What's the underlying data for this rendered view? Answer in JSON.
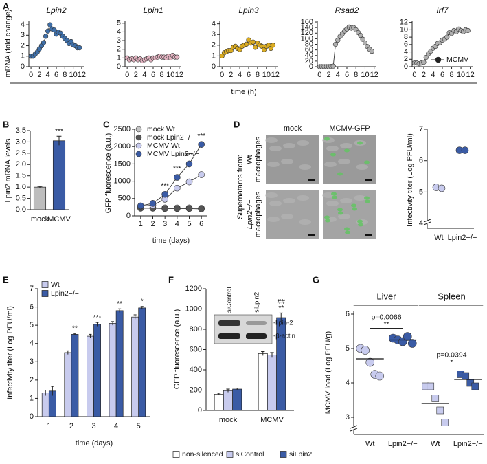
{
  "chart_data": [
    {
      "type": "line",
      "panel": "A",
      "title": "Lpin2",
      "ylabel": "mRNA (fold change)",
      "xlabel": "time (h)",
      "x": [
        0,
        0.5,
        1,
        1.5,
        2,
        2.5,
        3,
        3.5,
        4,
        4.5,
        5,
        5.5,
        6,
        6.5,
        7,
        7.5,
        8,
        8.5,
        9,
        9.5,
        10,
        10.5,
        11,
        11.5
      ],
      "xlim": [
        -0.5,
        12.5
      ],
      "xticks": [
        0,
        2,
        4,
        6,
        8,
        10,
        12
      ],
      "ylim": [
        0,
        4.4
      ],
      "yticks": [
        0,
        1,
        2,
        3,
        4
      ],
      "series": [
        {
          "color": "#3f6fa8",
          "values": [
            1.0,
            1.0,
            1.2,
            1.4,
            1.7,
            2.0,
            2.3,
            2.9,
            3.4,
            4.0,
            3.6,
            3.5,
            3.1,
            3.3,
            3.2,
            2.9,
            2.7,
            2.5,
            2.2,
            2.4,
            2.1,
            2.0,
            1.8,
            1.8
          ]
        }
      ]
    },
    {
      "type": "line",
      "title": "Lpin1",
      "x": [
        0,
        0.5,
        1,
        1.5,
        2,
        2.5,
        3,
        3.5,
        4,
        4.5,
        5,
        5.5,
        6,
        6.5,
        7,
        7.5,
        8,
        8.5,
        9,
        9.5,
        10,
        10.5,
        11,
        11.5
      ],
      "xlim": [
        -0.5,
        12.5
      ],
      "xticks": [
        0,
        2,
        4,
        6,
        8,
        10,
        12
      ],
      "ylim": [
        0,
        5.3
      ],
      "yticks": [
        0,
        1,
        2,
        3,
        4,
        5
      ],
      "series": [
        {
          "color": "#e3b3c1",
          "values": [
            1.0,
            0.8,
            0.9,
            0.8,
            1.0,
            0.8,
            0.9,
            0.7,
            0.8,
            0.9,
            1.0,
            0.8,
            1.0,
            1.0,
            1.1,
            1.2,
            1.1,
            1.1,
            1.0,
            1.2,
            1.0,
            1.3,
            1.1,
            1.1
          ]
        }
      ]
    },
    {
      "type": "line",
      "title": "Lpin3",
      "x": [
        0,
        0.5,
        1,
        1.5,
        2,
        2.5,
        3,
        3.5,
        4,
        4.5,
        5,
        5.5,
        6,
        6.5,
        7,
        7.5,
        8,
        8.5,
        9,
        9.5,
        10,
        10.5,
        11,
        11.5
      ],
      "xlim": [
        -0.5,
        12.5
      ],
      "xticks": [
        0,
        2,
        4,
        6,
        8,
        10,
        12
      ],
      "ylim": [
        0,
        4.3
      ],
      "yticks": [
        0,
        1,
        2,
        3,
        4
      ],
      "series": [
        {
          "color": "#d9ab22",
          "values": [
            1.0,
            1.3,
            1.4,
            1.5,
            1.5,
            1.8,
            1.9,
            1.7,
            1.6,
            1.9,
            2.0,
            2.1,
            2.5,
            2.2,
            2.3,
            1.8,
            2.2,
            2.0,
            1.9,
            1.6,
            1.9,
            2.0,
            1.7,
            2.0
          ]
        }
      ]
    },
    {
      "type": "line",
      "title": "Rsad2",
      "x": [
        0,
        0.5,
        1,
        1.5,
        2,
        2.5,
        3,
        3.5,
        4,
        4.5,
        5,
        5.5,
        6,
        6.5,
        7,
        7.5,
        8,
        8.5,
        9,
        9.5,
        10,
        10.5,
        11,
        11.5
      ],
      "xlim": [
        -0.5,
        12.5
      ],
      "xticks": [
        0,
        2,
        4,
        6,
        8,
        10,
        12
      ],
      "ylim": [
        0,
        165
      ],
      "yticks": [
        0,
        20,
        40,
        60,
        80,
        100,
        120,
        140,
        160
      ],
      "series": [
        {
          "color": "#b0b0b0",
          "values": [
            0,
            0,
            0,
            0,
            0,
            1,
            2,
            80,
            95,
            108,
            118,
            128,
            135,
            142,
            138,
            140,
            132,
            122,
            112,
            98,
            85,
            72,
            62,
            55
          ]
        }
      ]
    },
    {
      "type": "line",
      "title": "Irf7",
      "legend": "lower-right",
      "x": [
        0,
        0.5,
        1,
        1.5,
        2,
        2.5,
        3,
        3.5,
        4,
        4.5,
        5,
        5.5,
        6,
        6.5,
        7,
        7.5,
        8,
        8.5,
        9,
        9.5,
        10,
        10.5,
        11,
        11.5
      ],
      "xlim": [
        -0.5,
        12.5
      ],
      "xticks": [
        0,
        2,
        4,
        6,
        8,
        10,
        12
      ],
      "ylim": [
        0,
        12.5
      ],
      "yticks": [
        0,
        2,
        4,
        6,
        8,
        10,
        12
      ],
      "series": [
        {
          "name": "MCMV",
          "color": "#b0b0b0",
          "values": [
            1.0,
            1.0,
            0.8,
            1.0,
            1.2,
            2.5,
            3.5,
            4.2,
            5.0,
            5.5,
            6.3,
            6.5,
            7.2,
            7.5,
            8.0,
            9.2,
            9.0,
            9.8,
            9.5,
            10.2,
            9.8,
            9.5,
            10.0,
            9.8
          ]
        }
      ]
    },
    {
      "type": "bar",
      "panel": "B",
      "ylabel": "Lpin2 mRNA levels",
      "categories": [
        "mock",
        "MCMV"
      ],
      "ylim": [
        0,
        3.5
      ],
      "yticks": [
        {
          "value": 0,
          "label": "0.0"
        },
        {
          "value": 0.5,
          "label": "0.5"
        },
        {
          "value": 1,
          "label": "1.0"
        },
        {
          "value": 1.5,
          "label": "1.5"
        },
        {
          "value": 2,
          "label": "2.0"
        },
        {
          "value": 2.5,
          "label": "2.5"
        },
        {
          "value": 3,
          "label": "3.0"
        },
        {
          "value": 3.5,
          "label": "3.5"
        }
      ],
      "colors": [
        "#bdbdbd",
        "#3a5ba5"
      ],
      "series": [
        {
          "values": [
            1.0,
            3.05
          ],
          "errors": [
            0.03,
            0.2
          ]
        }
      ],
      "significance": [
        null,
        "***"
      ]
    },
    {
      "type": "line",
      "panel": "C",
      "ylabel": "GFP fluorescence (a.u.)",
      "xlabel": "time (days)",
      "legend": "upper-left",
      "x": [
        1,
        2,
        3,
        4,
        5,
        6
      ],
      "xlim": [
        0.5,
        6.5
      ],
      "xticks": [
        1,
        2,
        3,
        4,
        5,
        6
      ],
      "ylim": [
        0,
        2500
      ],
      "yticks": [
        0,
        500,
        1000,
        1500,
        2000,
        2500
      ],
      "series": [
        {
          "name": "mock Wt",
          "color": "#c4c4c4",
          "values": [
            230,
            230,
            230,
            230,
            230,
            220
          ]
        },
        {
          "name": "mock Lpin2−/−",
          "color": "#555555",
          "values": [
            220,
            220,
            210,
            210,
            210,
            200
          ]
        },
        {
          "name": "MCMV Wt",
          "color": "#c8cbee",
          "values": [
            280,
            310,
            480,
            800,
            980,
            1190
          ]
        },
        {
          "name": "MCMV Lpin2−/−",
          "color": "#3a5ba5",
          "values": [
            290,
            360,
            620,
            1110,
            1500,
            2060
          ]
        }
      ],
      "significance": [
        null,
        null,
        "***",
        "***",
        "***",
        "***"
      ]
    },
    {
      "type": "scatter",
      "panel": "D",
      "ylabel": "Infectivity titer (Log PFU/ml)",
      "categories": [
        "Wt",
        "Lpin2−/−"
      ],
      "ylim": [
        3.85,
        7
      ],
      "yticks": [
        4,
        5,
        6,
        7
      ],
      "axis_break": true,
      "colors": [
        "#c8cbee",
        "#3a5ba5"
      ],
      "markers": [
        "circle",
        "circle"
      ],
      "values": [
        [
          5.15,
          5.12
        ],
        [
          6.33,
          6.33
        ]
      ],
      "images": {
        "columns": [
          "mock",
          "MCMV-GFP"
        ],
        "row_title": "Supernatants from:",
        "rows": [
          [
            "Wt",
            "macrophages"
          ],
          [
            "Lpin2−/−",
            "macrophages"
          ]
        ]
      }
    },
    {
      "type": "bar",
      "panel": "E",
      "ylabel": "Infectivity titer (Log PFU/ml)",
      "xlabel": "time (days)",
      "legend": "upper-left",
      "categories": [
        "1",
        "2",
        "3",
        "4",
        "5"
      ],
      "ylim": [
        0,
        7
      ],
      "yticks": [
        0,
        1,
        2,
        3,
        4,
        5,
        6,
        7
      ],
      "series": [
        {
          "name": "Wt",
          "color": "#c8cbee",
          "values": [
            1.3,
            3.5,
            4.4,
            5.1,
            5.45
          ],
          "errors": [
            0.15,
            0.1,
            0.1,
            0.1,
            0.12
          ]
        },
        {
          "name": "Lpin2−/−",
          "color": "#3a5ba5",
          "values": [
            1.4,
            4.5,
            5.05,
            5.8,
            5.95
          ],
          "errors": [
            0.25,
            0.05,
            0.1,
            0.1,
            0.08
          ]
        }
      ],
      "significance": [
        null,
        "**",
        "***",
        "**",
        "*"
      ]
    },
    {
      "type": "bar",
      "panel": "F",
      "ylabel": "GFP fluorescence (a.u.)",
      "legend": "bottom",
      "categories": [
        "mock",
        "MCMV"
      ],
      "ylim": [
        0,
        1200
      ],
      "yticks": [
        0,
        200,
        400,
        600,
        800,
        1000,
        1200
      ],
      "series": [
        {
          "name": "non-silenced",
          "color": "#ffffff",
          "values": [
            160,
            560
          ],
          "errors": [
            10,
            20
          ]
        },
        {
          "name": "siControl",
          "color": "#c8cbee",
          "values": [
            195,
            545
          ],
          "errors": [
            15,
            25
          ]
        },
        {
          "name": "siLpin2",
          "color": "#3a5ba5",
          "values": [
            210,
            915
          ],
          "errors": [
            10,
            45
          ]
        }
      ],
      "significance": [
        null,
        "**"
      ],
      "significance2": [
        null,
        "##"
      ],
      "inset": {
        "lanes": [
          "siControl",
          "siLpin2"
        ],
        "bands": [
          "-lipin-2",
          "-β-actin"
        ]
      }
    },
    {
      "type": "scatter",
      "panel": "G",
      "ylabel": "MCMV load (Log PFU/g)",
      "categories": [
        "Wt",
        "Lpin2−/−",
        "Wt",
        "Lpin2−/−"
      ],
      "ylim": [
        2.5,
        6.1
      ],
      "yticks": [
        3,
        4,
        5,
        6
      ],
      "axis_break": true,
      "colors": [
        "#c8cbee",
        "#3a5ba5",
        "#c8cbee",
        "#3a5ba5"
      ],
      "markers": [
        "circle",
        "circle",
        "square",
        "square"
      ],
      "values": [
        [
          5.0,
          4.95,
          4.6,
          4.25,
          4.2
        ],
        [
          5.3,
          5.25,
          5.2,
          5.35,
          5.15
        ],
        [
          3.9,
          3.9,
          3.55,
          3.2,
          2.85
        ],
        [
          4.25,
          4.2,
          4.0,
          3.9
        ]
      ],
      "means": [
        4.7,
        5.25,
        3.4,
        4.1
      ],
      "groups": [
        {
          "label": "Liver",
          "p_value": "p=0.0066",
          "significance": "**"
        },
        {
          "label": "Spleen",
          "p_value": "p=0.0394",
          "significance": "*"
        }
      ]
    }
  ]
}
